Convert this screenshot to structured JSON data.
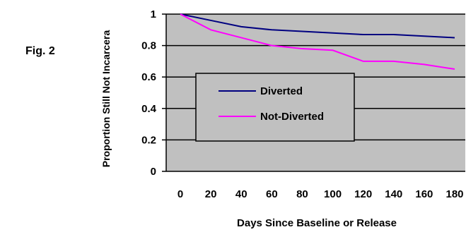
{
  "figure_label": "Fig. 2",
  "chart_data": {
    "type": "line",
    "xlabel": "Days Since Baseline or Release",
    "ylabel": "Proportion Still Not Incarcera",
    "x": [
      0,
      20,
      40,
      60,
      80,
      100,
      120,
      140,
      160,
      180
    ],
    "xlim": [
      0,
      180
    ],
    "ylim": [
      0,
      1
    ],
    "x_ticks": [
      "0",
      "20",
      "40",
      "60",
      "80",
      "100",
      "120",
      "140",
      "160",
      "180"
    ],
    "y_ticks": [
      "0",
      "0.2",
      "0.4",
      "0.6",
      "0.8",
      "1"
    ],
    "y_tick_values": [
      0,
      0.2,
      0.4,
      0.6,
      0.8,
      1
    ],
    "grid": "horizontal",
    "plot_background": "#c0c0c0",
    "legend_position": "center-left",
    "series": [
      {
        "name": "Diverted",
        "color": "#000080",
        "values": [
          1.0,
          0.96,
          0.92,
          0.9,
          0.89,
          0.88,
          0.87,
          0.87,
          0.86,
          0.85
        ]
      },
      {
        "name": "Not-Diverted",
        "color": "#ff00ff",
        "values": [
          1.0,
          0.9,
          0.85,
          0.8,
          0.78,
          0.77,
          0.7,
          0.7,
          0.68,
          0.65
        ]
      }
    ]
  }
}
